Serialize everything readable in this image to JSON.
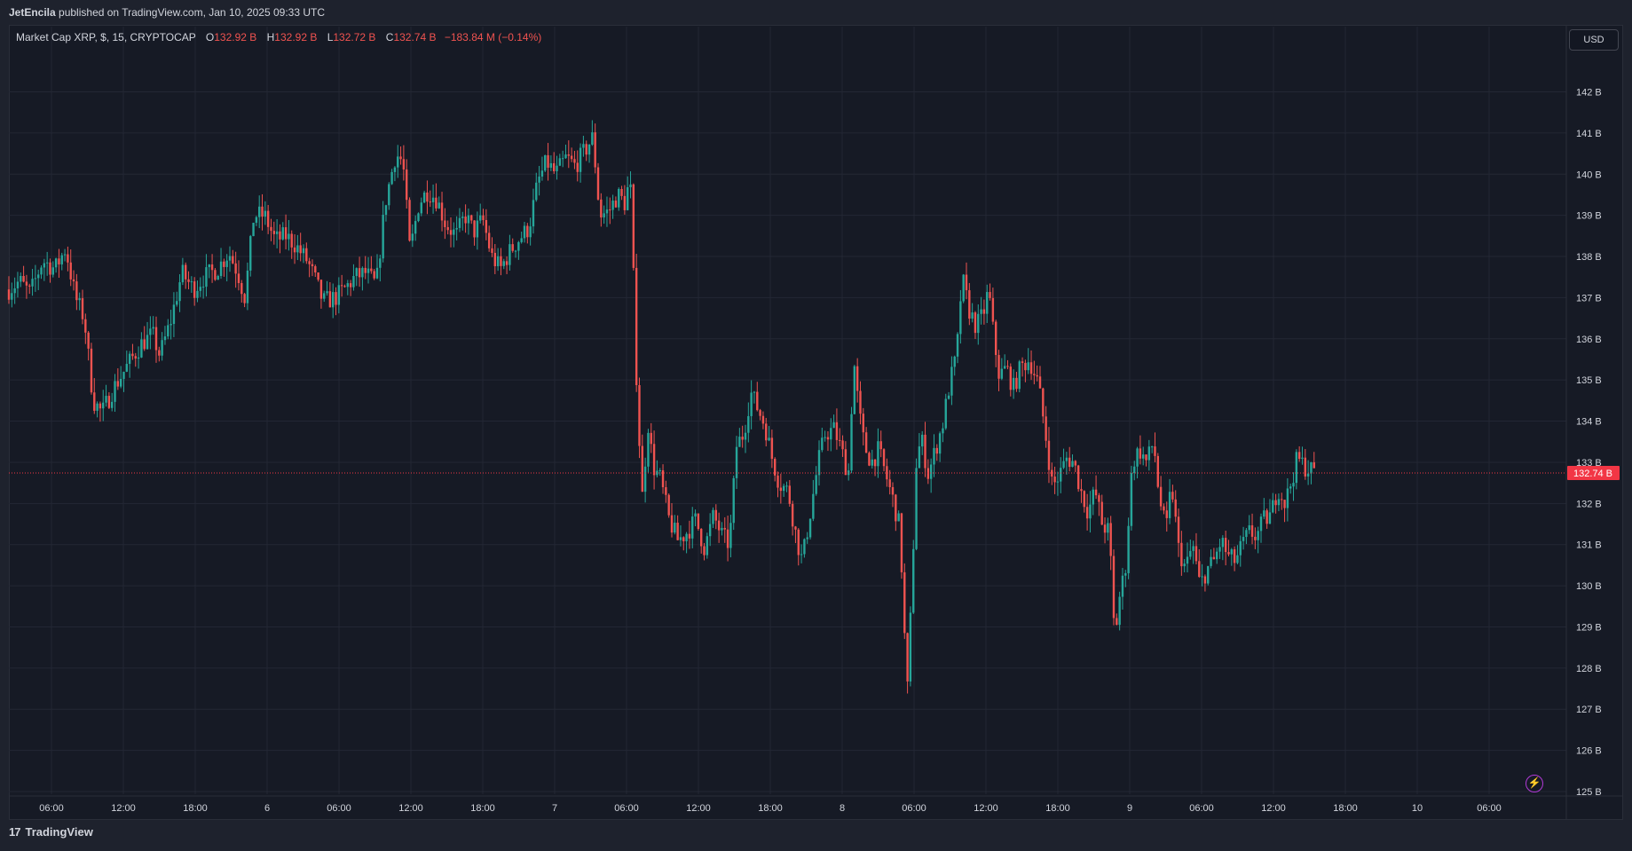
{
  "header": {
    "author": "JetEncila",
    "published_text": " published on TradingView.com, Jan 10, 2025 09:33 UTC"
  },
  "legend": {
    "symbol": "Market Cap XRP, $, 15, CRYPTOCAP",
    "o_key": "O",
    "o_val": "132.92 B",
    "h_key": "H",
    "h_val": "132.92 B",
    "l_key": "L",
    "l_val": "132.72 B",
    "c_key": "C",
    "c_val": "132.74 B",
    "change": "−183.84 M (−0.14%)"
  },
  "currency_button": "USD",
  "footer": {
    "logo": "17",
    "brand": "TradingView"
  },
  "colors": {
    "up": "#26a69a",
    "down": "#ef5350",
    "grid": "#232734",
    "background": "#161a25",
    "axis_text": "#d1d4dc",
    "last_price": "#f23645"
  },
  "chart_data": {
    "type": "candlestick",
    "title": "Market Cap XRP, $, 15, CRYPTOCAP",
    "ylabel": "",
    "xlabel": "",
    "y_unit": "B",
    "ylim": [
      124.9,
      143.6
    ],
    "y_ticks": [
      "142 B",
      "141 B",
      "140 B",
      "139 B",
      "138 B",
      "137 B",
      "136 B",
      "135 B",
      "134 B",
      "133 B",
      "132 B",
      "131 B",
      "130 B",
      "129 B",
      "128 B",
      "127 B",
      "126 B",
      "125 B"
    ],
    "x_ticks": [
      "06:00",
      "12:00",
      "18:00",
      "6",
      "06:00",
      "12:00",
      "18:00",
      "7",
      "06:00",
      "12:00",
      "18:00",
      "8",
      "06:00",
      "12:00",
      "18:00",
      "9",
      "06:00",
      "12:00",
      "18:00",
      "10",
      "06:00"
    ],
    "last_price": 132.74,
    "last_price_label": "132.74 B",
    "grid": true,
    "close_path": [
      [
        0,
        137.2
      ],
      [
        12,
        137.4
      ],
      [
        24,
        137.1
      ],
      [
        38,
        137.9
      ],
      [
        52,
        137.7
      ],
      [
        64,
        138.2
      ],
      [
        75,
        137.0
      ],
      [
        85,
        136.5
      ],
      [
        95,
        134.5
      ],
      [
        105,
        134.2
      ],
      [
        118,
        134.8
      ],
      [
        135,
        135.4
      ],
      [
        150,
        135.9
      ],
      [
        162,
        136.1
      ],
      [
        170,
        135.6
      ],
      [
        182,
        136.4
      ],
      [
        195,
        137.6
      ],
      [
        208,
        137.2
      ],
      [
        220,
        137.5
      ],
      [
        235,
        137.7
      ],
      [
        248,
        138.1
      ],
      [
        258,
        137.6
      ],
      [
        266,
        137.0
      ],
      [
        276,
        139.0
      ],
      [
        288,
        139.0
      ],
      [
        300,
        138.4
      ],
      [
        312,
        138.5
      ],
      [
        322,
        138.3
      ],
      [
        336,
        137.9
      ],
      [
        344,
        137.5
      ],
      [
        354,
        136.9
      ],
      [
        368,
        137.0
      ],
      [
        378,
        137.2
      ],
      [
        390,
        137.5
      ],
      [
        402,
        137.6
      ],
      [
        414,
        137.3
      ],
      [
        424,
        139.3
      ],
      [
        436,
        140.5
      ],
      [
        444,
        140.3
      ],
      [
        452,
        138.1
      ],
      [
        462,
        139.3
      ],
      [
        472,
        139.6
      ],
      [
        482,
        139.4
      ],
      [
        492,
        138.8
      ],
      [
        504,
        138.5
      ],
      [
        514,
        139.0
      ],
      [
        524,
        138.6
      ],
      [
        534,
        138.9
      ],
      [
        544,
        138.0
      ],
      [
        554,
        137.7
      ],
      [
        564,
        138.1
      ],
      [
        574,
        138.4
      ],
      [
        586,
        138.7
      ],
      [
        596,
        139.8
      ],
      [
        606,
        140.3
      ],
      [
        616,
        140.0
      ],
      [
        628,
        140.4
      ],
      [
        638,
        140.2
      ],
      [
        650,
        140.6
      ],
      [
        658,
        140.9
      ],
      [
        666,
        139.0
      ],
      [
        676,
        139.1
      ],
      [
        686,
        139.5
      ],
      [
        694,
        139.3
      ],
      [
        700,
        139.9
      ],
      [
        703,
        138.1
      ],
      [
        708,
        134.5
      ],
      [
        714,
        132.1
      ],
      [
        720,
        134.0
      ],
      [
        726,
        132.9
      ],
      [
        734,
        132.6
      ],
      [
        744,
        131.6
      ],
      [
        754,
        131.1
      ],
      [
        764,
        131.3
      ],
      [
        774,
        131.6
      ],
      [
        784,
        130.9
      ],
      [
        794,
        131.7
      ],
      [
        804,
        131.2
      ],
      [
        812,
        131.0
      ],
      [
        820,
        133.4
      ],
      [
        828,
        133.7
      ],
      [
        836,
        134.7
      ],
      [
        844,
        134.3
      ],
      [
        852,
        133.9
      ],
      [
        860,
        133.1
      ],
      [
        868,
        132.5
      ],
      [
        878,
        132.3
      ],
      [
        888,
        131.1
      ],
      [
        894,
        130.6
      ],
      [
        904,
        131.9
      ],
      [
        912,
        133.0
      ],
      [
        920,
        133.7
      ],
      [
        930,
        133.8
      ],
      [
        938,
        133.3
      ],
      [
        946,
        132.7
      ],
      [
        952,
        135.5
      ],
      [
        958,
        134.2
      ],
      [
        964,
        133.4
      ],
      [
        972,
        133.0
      ],
      [
        980,
        133.3
      ],
      [
        988,
        132.7
      ],
      [
        996,
        132.1
      ],
      [
        1004,
        131.4
      ],
      [
        1008,
        129.5
      ],
      [
        1012,
        127.2
      ],
      [
        1018,
        130.2
      ],
      [
        1022,
        132.9
      ],
      [
        1028,
        133.6
      ],
      [
        1036,
        132.7
      ],
      [
        1044,
        133.3
      ],
      [
        1052,
        133.9
      ],
      [
        1060,
        134.9
      ],
      [
        1068,
        135.6
      ],
      [
        1074,
        137.5
      ],
      [
        1082,
        136.7
      ],
      [
        1090,
        136.3
      ],
      [
        1098,
        136.6
      ],
      [
        1104,
        137.2
      ],
      [
        1110,
        136.0
      ],
      [
        1116,
        135.1
      ],
      [
        1124,
        135.3
      ],
      [
        1132,
        134.8
      ],
      [
        1140,
        135.3
      ],
      [
        1150,
        135.5
      ],
      [
        1160,
        134.9
      ],
      [
        1168,
        133.7
      ],
      [
        1176,
        132.4
      ],
      [
        1184,
        132.7
      ],
      [
        1192,
        133.1
      ],
      [
        1200,
        133.0
      ],
      [
        1208,
        132.3
      ],
      [
        1216,
        131.8
      ],
      [
        1224,
        132.3
      ],
      [
        1232,
        131.5
      ],
      [
        1240,
        131.3
      ],
      [
        1246,
        128.7
      ],
      [
        1252,
        129.8
      ],
      [
        1258,
        130.4
      ],
      [
        1266,
        133.0
      ],
      [
        1274,
        133.3
      ],
      [
        1282,
        133.0
      ],
      [
        1290,
        133.5
      ],
      [
        1296,
        132.2
      ],
      [
        1304,
        131.3
      ],
      [
        1310,
        132.5
      ],
      [
        1318,
        130.9
      ],
      [
        1326,
        130.4
      ],
      [
        1334,
        131.0
      ],
      [
        1342,
        130.0
      ],
      [
        1350,
        130.4
      ],
      [
        1358,
        130.6
      ],
      [
        1366,
        131.1
      ],
      [
        1374,
        130.7
      ],
      [
        1382,
        130.6
      ],
      [
        1390,
        131.0
      ],
      [
        1398,
        131.3
      ],
      [
        1406,
        131.2
      ],
      [
        1414,
        131.6
      ],
      [
        1422,
        131.7
      ],
      [
        1430,
        132.4
      ],
      [
        1438,
        132.0
      ],
      [
        1446,
        132.6
      ],
      [
        1452,
        133.1
      ],
      [
        1460,
        132.9
      ],
      [
        1468,
        132.8
      ],
      [
        1474,
        132.74
      ]
    ]
  }
}
